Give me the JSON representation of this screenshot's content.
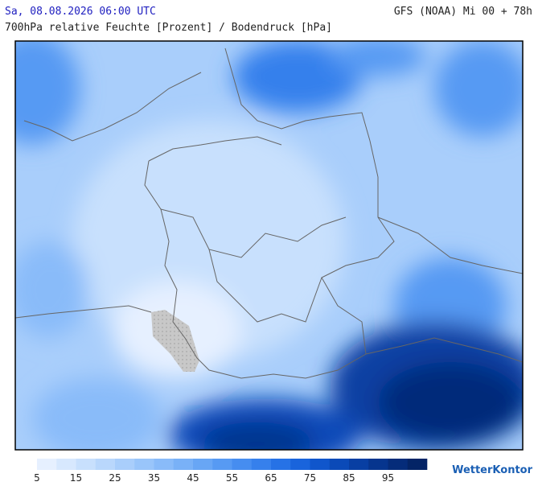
{
  "header": {
    "datetime": "Sa, 08.08.2026 06:00 UTC",
    "model": "GFS (NOAA) Mi 00 + 78h",
    "subtitle": "700hPa relative Feuchte [Prozent] / Bodendruck [hPa]"
  },
  "legend": {
    "lim": [
      5,
      105
    ],
    "ticks": [
      5,
      15,
      25,
      35,
      45,
      55,
      65,
      75,
      85,
      95
    ],
    "colors": [
      "#e6f0ff",
      "#d7e8fe",
      "#c8e0fd",
      "#b9d7fc",
      "#a9cefb",
      "#99c5fa",
      "#89bbf9",
      "#79b1f7",
      "#68a6f5",
      "#579af3",
      "#468df0",
      "#3680ec",
      "#2672e6",
      "#1964dc",
      "#1056cc",
      "#0b4ab8",
      "#083fa3",
      "#06358e",
      "#052c7a",
      "#042466"
    ]
  },
  "brand": "WetterKontor"
}
